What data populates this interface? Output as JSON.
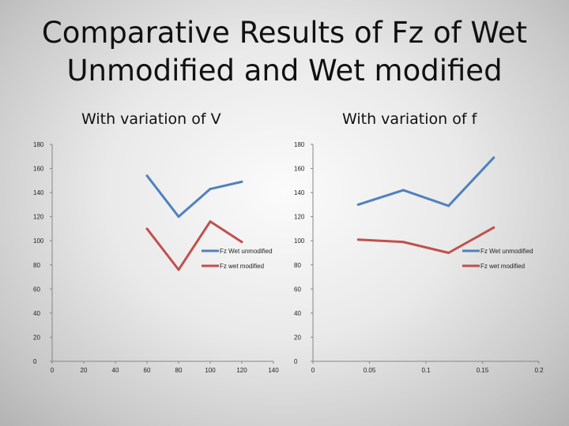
{
  "slide": {
    "title_line1": "Comparative Results of Fz of Wet",
    "title_line2": "Unmodified and Wet modified"
  },
  "chart_data": [
    {
      "type": "line",
      "title": "With variation of V",
      "xlabel": "",
      "ylabel": "",
      "xlim": [
        0,
        140
      ],
      "ylim": [
        0,
        180
      ],
      "x_ticks": [
        "0",
        "20",
        "40",
        "60",
        "80",
        "100",
        "120",
        "140"
      ],
      "y_ticks": [
        "0",
        "20",
        "40",
        "60",
        "80",
        "100",
        "120",
        "140",
        "160",
        "180"
      ],
      "grid": false,
      "legend_position": "right",
      "series": [
        {
          "name": "Fz Wet unmodified",
          "color": "#4f81bd",
          "x": [
            60,
            80,
            100,
            120
          ],
          "y": [
            154,
            120,
            143,
            149
          ]
        },
        {
          "name": "Fz wet modified",
          "color": "#c0504d",
          "x": [
            60,
            80,
            100,
            120
          ],
          "y": [
            110,
            76,
            116,
            99
          ]
        }
      ]
    },
    {
      "type": "line",
      "title": "With variation of f",
      "xlabel": "",
      "ylabel": "",
      "xlim": [
        0,
        0.2
      ],
      "ylim": [
        0,
        180
      ],
      "x_ticks": [
        "0",
        "0.05",
        "0.1",
        "0.15",
        "0.2"
      ],
      "y_ticks": [
        "0",
        "20",
        "40",
        "60",
        "80",
        "100",
        "120",
        "140",
        "160",
        "180"
      ],
      "grid": false,
      "legend_position": "right",
      "series": [
        {
          "name": "Fz Wet unmodified",
          "color": "#4f81bd",
          "x": [
            0.04,
            0.08,
            0.12,
            0.16
          ],
          "y": [
            130,
            142,
            129,
            169
          ]
        },
        {
          "name": "Fz wet modified",
          "color": "#c0504d",
          "x": [
            0.04,
            0.08,
            0.12,
            0.16
          ],
          "y": [
            101,
            99,
            90,
            111
          ]
        }
      ]
    }
  ]
}
